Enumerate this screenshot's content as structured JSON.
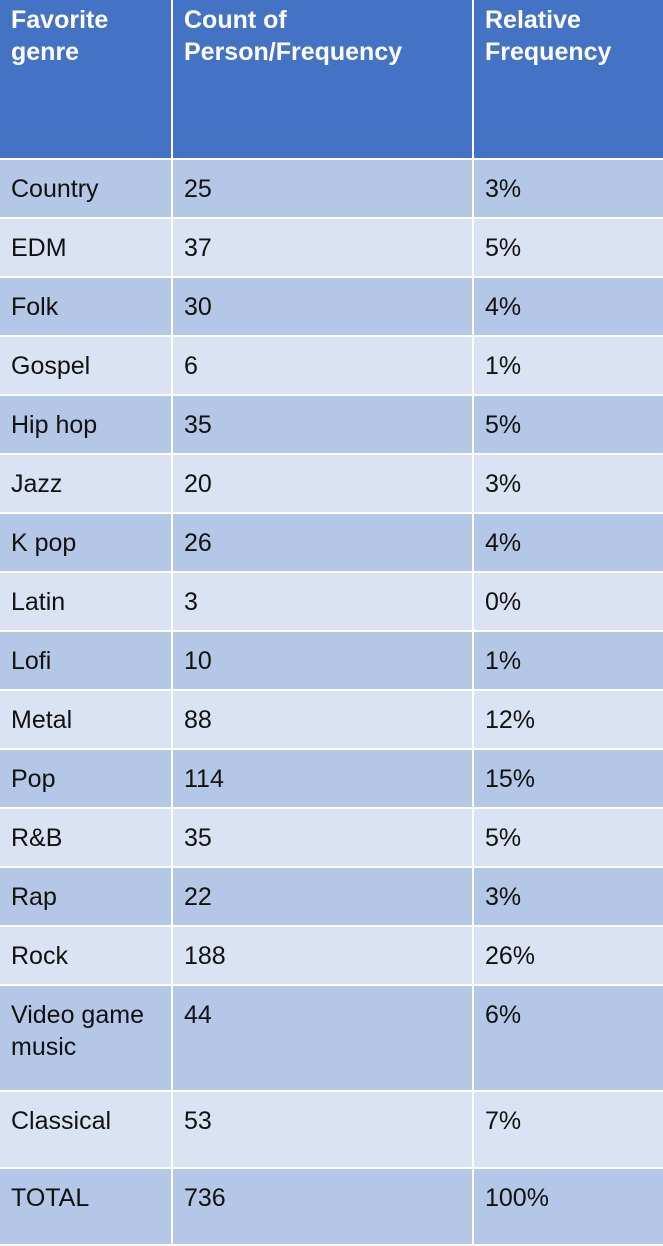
{
  "table": {
    "headers": [
      "Favorite genre",
      "Count of Person/Frequency",
      "Relative Frequency"
    ],
    "rows": [
      [
        "Country",
        "25",
        "3%"
      ],
      [
        "EDM",
        "37",
        "5%"
      ],
      [
        "Folk",
        "30",
        "4%"
      ],
      [
        "Gospel",
        "6",
        "1%"
      ],
      [
        "Hip hop",
        "35",
        "5%"
      ],
      [
        "Jazz",
        "20",
        "3%"
      ],
      [
        "K pop",
        "26",
        "4%"
      ],
      [
        "Latin",
        "3",
        "0%"
      ],
      [
        "Lofi",
        "10",
        "1%"
      ],
      [
        "Metal",
        "88",
        "12%"
      ],
      [
        "Pop",
        "114",
        "15%"
      ],
      [
        "R&B",
        "35",
        "5%"
      ],
      [
        "Rap",
        "22",
        "3%"
      ],
      [
        "Rock",
        "188",
        "26%"
      ],
      [
        "Video game music",
        "44",
        "6%"
      ],
      [
        "Classical",
        "53",
        "7%"
      ],
      [
        "TOTAL",
        "736",
        "100%"
      ]
    ],
    "colors": {
      "header_bg": "#4472c4",
      "row_dark": "#b4c7e7",
      "row_light": "#dae3f3",
      "header_text": "#ffffff"
    }
  }
}
